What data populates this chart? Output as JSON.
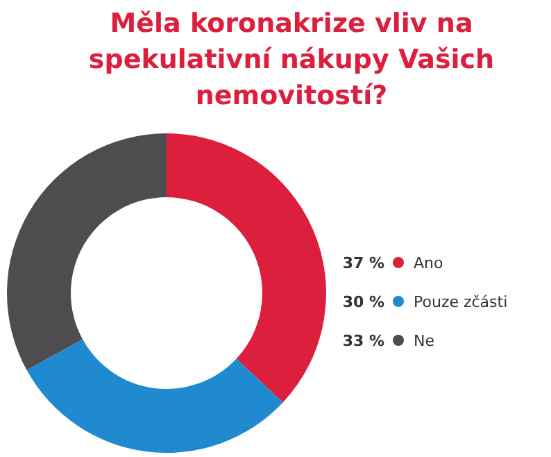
{
  "chart_data": {
    "type": "donut",
    "title": "Měla koronakrize vliv na spekulativní nákupy Vašich nemovitostí?",
    "categories": [
      "Ano",
      "Pouze zčásti",
      "Ne"
    ],
    "values": [
      37,
      30,
      33
    ],
    "value_labels": [
      "37 %",
      "30 %",
      "33 %"
    ],
    "colors": [
      "#dc1f3c",
      "#1f8ad0",
      "#4d4d4f"
    ],
    "legend": "right"
  }
}
